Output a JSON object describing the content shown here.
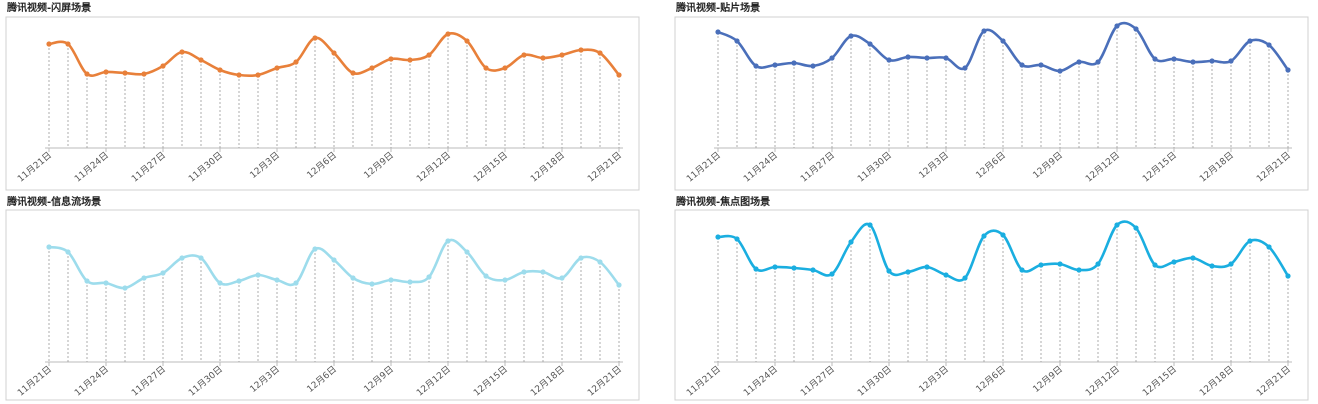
{
  "chart_data": [
    {
      "type": "line",
      "title": "腾讯视频-闪屏场景",
      "color": "#e8803a",
      "ylim": [
        0,
        140
      ],
      "categories": [
        "11月21日",
        null,
        null,
        "11月24日",
        null,
        null,
        "11月27日",
        null,
        null,
        "11月30日",
        null,
        null,
        "12月3日",
        null,
        null,
        "12月6日",
        null,
        null,
        "12月9日",
        null,
        null,
        "12月12日",
        null,
        null,
        "12月15日",
        null,
        null,
        "12月18日",
        null,
        null,
        "12月21日"
      ],
      "values": [
        104,
        104,
        74,
        76,
        75,
        74,
        82,
        96,
        88,
        78,
        73,
        73,
        80,
        86,
        110,
        95,
        75,
        80,
        89,
        88,
        93,
        114,
        107,
        80,
        80,
        93,
        90,
        93,
        98,
        95,
        73
      ]
    },
    {
      "type": "line",
      "title": "腾讯视频-贴片场景",
      "color": "#4a6fba",
      "ylim": [
        0,
        140
      ],
      "categories": [
        "11月21日",
        null,
        null,
        "11月24日",
        null,
        null,
        "11月27日",
        null,
        null,
        "11月30日",
        null,
        null,
        "12月3日",
        null,
        null,
        "12月6日",
        null,
        null,
        "12月9日",
        null,
        null,
        "12月12日",
        null,
        null,
        "12月15日",
        null,
        null,
        "12月18日",
        null,
        null,
        "12月21日"
      ],
      "values": [
        116,
        107,
        82,
        83,
        85,
        82,
        90,
        112,
        104,
        88,
        91,
        90,
        90,
        80,
        117,
        107,
        83,
        83,
        77,
        86,
        86,
        122,
        119,
        89,
        89,
        86,
        87,
        87,
        107,
        103,
        78
      ]
    },
    {
      "type": "line",
      "title": "腾讯视频-信息流场景",
      "color": "#9ddcec",
      "ylim": [
        0,
        140
      ],
      "categories": [
        "11月21日",
        null,
        null,
        "11月24日",
        null,
        null,
        "11月27日",
        null,
        null,
        "11月30日",
        null,
        null,
        "12月3日",
        null,
        null,
        "12月6日",
        null,
        null,
        "12月9日",
        null,
        null,
        "12月12日",
        null,
        null,
        "12月15日",
        null,
        null,
        "12月18日",
        null,
        null,
        "12月21日"
      ],
      "values": [
        115,
        110,
        81,
        79,
        74,
        84,
        89,
        104,
        104,
        79,
        81,
        87,
        82,
        79,
        113,
        102,
        84,
        78,
        82,
        80,
        85,
        121,
        110,
        86,
        82,
        90,
        90,
        84,
        104,
        100,
        77
      ]
    },
    {
      "type": "line",
      "title": "腾讯视频-焦点图场景",
      "color": "#1aaee0",
      "ylim": [
        0,
        140
      ],
      "categories": [
        "11月21日",
        null,
        null,
        "11月24日",
        null,
        null,
        "11月27日",
        null,
        null,
        "11月30日",
        null,
        null,
        "12月3日",
        null,
        null,
        "12月6日",
        null,
        null,
        "12月9日",
        null,
        null,
        "12月12日",
        null,
        null,
        "12月15日",
        null,
        null,
        "12月18日",
        null,
        null,
        "12月21日"
      ],
      "values": [
        125,
        123,
        93,
        95,
        94,
        92,
        88,
        120,
        137,
        91,
        90,
        95,
        87,
        84,
        126,
        127,
        92,
        97,
        98,
        92,
        98,
        137,
        134,
        97,
        100,
        104,
        96,
        98,
        121,
        115,
        86
      ]
    }
  ]
}
